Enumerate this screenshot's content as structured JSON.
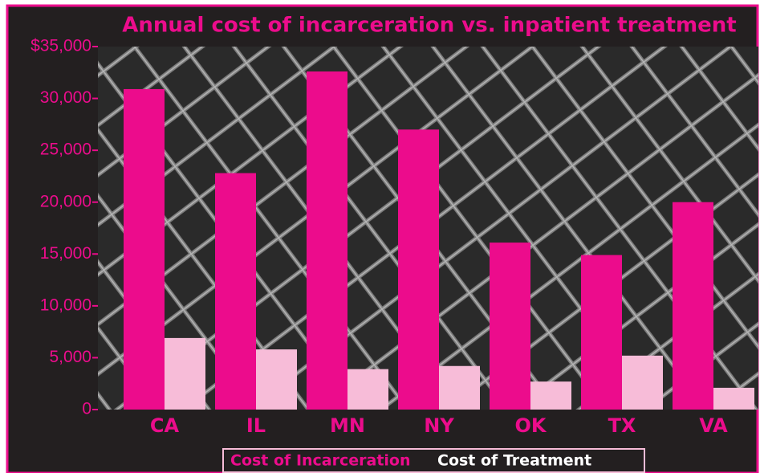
{
  "chart_data": {
    "type": "bar",
    "title": "Annual cost of incarceration vs. inpatient treatment",
    "categories": [
      "CA",
      "IL",
      "MN",
      "NY",
      "OK",
      "TX",
      "VA"
    ],
    "series": [
      {
        "name": "Cost of Incarceration",
        "color": "#ec0c8c",
        "values": [
          30900,
          22800,
          32600,
          27000,
          16100,
          14900,
          20000
        ]
      },
      {
        "name": "Cost of Treatment",
        "color": "#f7bcd8",
        "values": [
          6900,
          5800,
          3900,
          4200,
          2700,
          5200,
          2100
        ]
      }
    ],
    "ylim": [
      0,
      35000
    ],
    "yticks": [
      0,
      {
        "value": 5000,
        "label": "5,000"
      },
      {
        "value": 10000,
        "label": "10,000"
      },
      {
        "value": 15000,
        "label": "15,000"
      },
      {
        "value": 20000,
        "label": "20,000"
      },
      {
        "value": 25000,
        "label": "25,000"
      },
      {
        "value": 30000,
        "label": "30,000"
      },
      {
        "value": 35000,
        "label": "$35,000"
      }
    ],
    "legend": "bottom"
  }
}
